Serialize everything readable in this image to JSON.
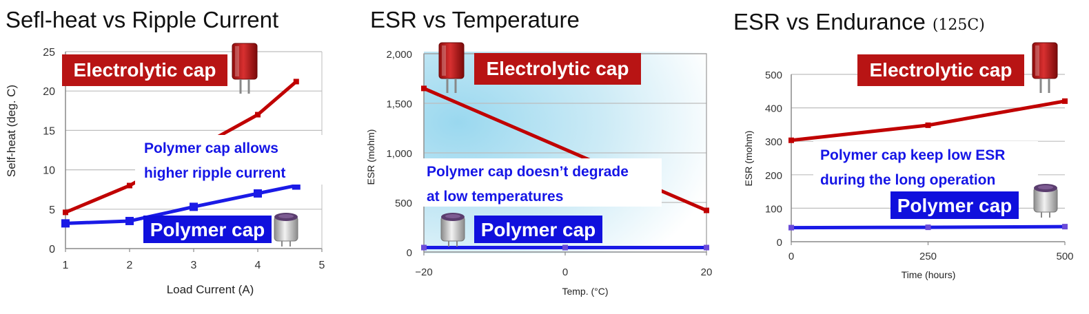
{
  "colors": {
    "red": "#c00000",
    "blue": "#1a1ae6",
    "grid": "#bdbdbd",
    "badge_red": "#b81414",
    "badge_blue": "#1010dd"
  },
  "chart_data": [
    {
      "type": "line",
      "title": "Sefl-heat vs Ripple Current",
      "xlabel": "Load Current (A)",
      "ylabel": "Self-heat (deg. C)",
      "xlim": [
        1,
        5
      ],
      "ylim": [
        0,
        25
      ],
      "x_ticks": [
        "1",
        "2",
        "3",
        "4",
        "5"
      ],
      "y_ticks": [
        "0",
        "5",
        "10",
        "15",
        "20",
        "25"
      ],
      "grid": true,
      "series": [
        {
          "name": "Electrolytic cap",
          "color": "#c00000",
          "x": [
            1,
            2,
            3,
            4,
            4.6
          ],
          "values": [
            4.6,
            8,
            12.5,
            17,
            21.2
          ]
        },
        {
          "name": "Polymer cap",
          "color": "#1a1ae6",
          "x": [
            1,
            2,
            3,
            4,
            4.6
          ],
          "values": [
            3.2,
            3.5,
            5.3,
            7,
            8
          ]
        }
      ],
      "annotation": [
        "Polymer cap allows",
        "higher ripple current"
      ]
    },
    {
      "type": "line",
      "title": "ESR vs Temperature",
      "xlabel": "Temp. (°C)",
      "ylabel": "ESR (mohm)",
      "xlim": [
        -20,
        20
      ],
      "ylim": [
        0,
        2000
      ],
      "x_ticks": [
        "−20",
        "0",
        "20"
      ],
      "y_ticks": [
        "0",
        "500",
        "1,000",
        "1,500",
        "2,000"
      ],
      "grid": true,
      "series": [
        {
          "name": "Electrolytic cap",
          "color": "#c00000",
          "x": [
            -20,
            20
          ],
          "values": [
            1650,
            420
          ]
        },
        {
          "name": "Polymer cap",
          "color": "#1a1ae6",
          "x": [
            -20,
            0,
            20
          ],
          "values": [
            45,
            45,
            45
          ]
        }
      ],
      "annotation": [
        "Polymer cap doesn’t degrade",
        "at low temperatures"
      ]
    },
    {
      "type": "line",
      "title": "ESR vs Endurance",
      "title_suffix": "(125C)",
      "xlabel": "Time (hours)",
      "ylabel": "ESR (mohm)",
      "xlim": [
        0,
        500
      ],
      "ylim": [
        0,
        500
      ],
      "x_ticks": [
        "0",
        "250",
        "500"
      ],
      "y_ticks": [
        "0",
        "100",
        "200",
        "300",
        "400",
        "500"
      ],
      "grid": true,
      "series": [
        {
          "name": "Electrolytic cap",
          "color": "#c00000",
          "x": [
            0,
            250,
            500
          ],
          "values": [
            303,
            348,
            420
          ]
        },
        {
          "name": "Polymer cap",
          "color": "#1a1ae6",
          "x": [
            0,
            250,
            500
          ],
          "values": [
            42,
            43,
            45
          ]
        }
      ],
      "annotation": [
        "Polymer cap keep low ESR",
        "during the long operation"
      ]
    }
  ]
}
